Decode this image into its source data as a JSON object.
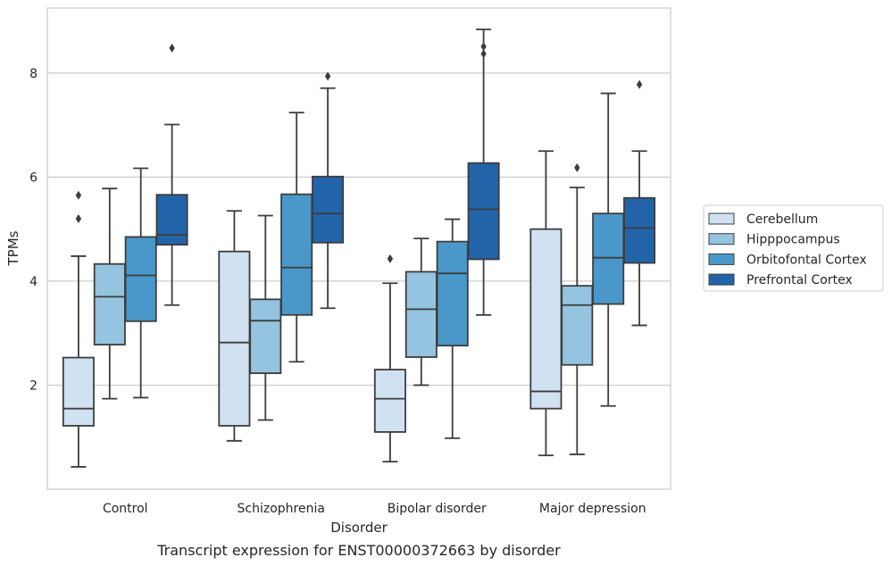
{
  "caption": "Transcript expression for ENST00000372663 by disorder",
  "chart_data": {
    "type": "box",
    "xlabel": "Disorder",
    "ylabel": "TPMs",
    "ylim": [
      0,
      9.25
    ],
    "yticks": [
      2,
      4,
      6,
      8
    ],
    "grid": "horizontal",
    "legend_position": "right",
    "categories": [
      "Control",
      "Schizophrenia",
      "Bipolar disorder",
      "Major depression"
    ],
    "series": [
      {
        "name": "Cerebellum",
        "color": "#d0e1f2",
        "boxes": [
          {
            "whisker_low": 0.43,
            "q1": 1.22,
            "median": 1.55,
            "q3": 2.53,
            "whisker_high": 4.48,
            "outliers": [
              5.65,
              5.2
            ]
          },
          {
            "whisker_low": 0.93,
            "q1": 1.22,
            "median": 2.82,
            "q3": 4.57,
            "whisker_high": 5.35,
            "outliers": []
          },
          {
            "whisker_low": 0.53,
            "q1": 1.1,
            "median": 1.74,
            "q3": 2.3,
            "whisker_high": 3.96,
            "outliers": [
              4.43
            ]
          },
          {
            "whisker_low": 0.65,
            "q1": 1.55,
            "median": 1.88,
            "q3": 5.0,
            "whisker_high": 6.5,
            "outliers": []
          }
        ]
      },
      {
        "name": "Hipppocampus",
        "color": "#94c4df",
        "boxes": [
          {
            "whisker_low": 1.74,
            "q1": 2.78,
            "median": 3.7,
            "q3": 4.33,
            "whisker_high": 5.78,
            "outliers": []
          },
          {
            "whisker_low": 1.33,
            "q1": 2.23,
            "median": 3.24,
            "q3": 3.65,
            "whisker_high": 5.26,
            "outliers": []
          },
          {
            "whisker_low": 2.0,
            "q1": 2.54,
            "median": 3.46,
            "q3": 4.18,
            "whisker_high": 4.82,
            "outliers": []
          },
          {
            "whisker_low": 0.67,
            "q1": 2.39,
            "median": 3.54,
            "q3": 3.91,
            "whisker_high": 5.8,
            "outliers": [
              6.18
            ]
          }
        ]
      },
      {
        "name": "Orbitofontal Cortex",
        "color": "#4a98c9",
        "boxes": [
          {
            "whisker_low": 1.76,
            "q1": 3.23,
            "median": 4.11,
            "q3": 4.85,
            "whisker_high": 6.17,
            "outliers": []
          },
          {
            "whisker_low": 2.45,
            "q1": 3.35,
            "median": 4.26,
            "q3": 5.67,
            "whisker_high": 7.24,
            "outliers": []
          },
          {
            "whisker_low": 0.98,
            "q1": 2.76,
            "median": 4.15,
            "q3": 4.76,
            "whisker_high": 5.19,
            "outliers": []
          },
          {
            "whisker_low": 1.6,
            "q1": 3.56,
            "median": 4.45,
            "q3": 5.3,
            "whisker_high": 7.61,
            "outliers": []
          }
        ]
      },
      {
        "name": "Prefrontal Cortex",
        "color": "#2264aa",
        "boxes": [
          {
            "whisker_low": 3.54,
            "q1": 4.7,
            "median": 4.89,
            "q3": 5.66,
            "whisker_high": 7.01,
            "outliers": [
              8.48
            ]
          },
          {
            "whisker_low": 3.48,
            "q1": 4.74,
            "median": 5.3,
            "q3": 6.01,
            "whisker_high": 7.71,
            "outliers": [
              7.94
            ]
          },
          {
            "whisker_low": 3.35,
            "q1": 4.42,
            "median": 5.38,
            "q3": 6.27,
            "whisker_high": 8.84,
            "outliers": [
              8.37,
              8.51
            ]
          },
          {
            "whisker_low": 3.15,
            "q1": 4.35,
            "median": 5.02,
            "q3": 5.6,
            "whisker_high": 6.5,
            "outliers": [
              7.78
            ]
          }
        ]
      }
    ]
  }
}
